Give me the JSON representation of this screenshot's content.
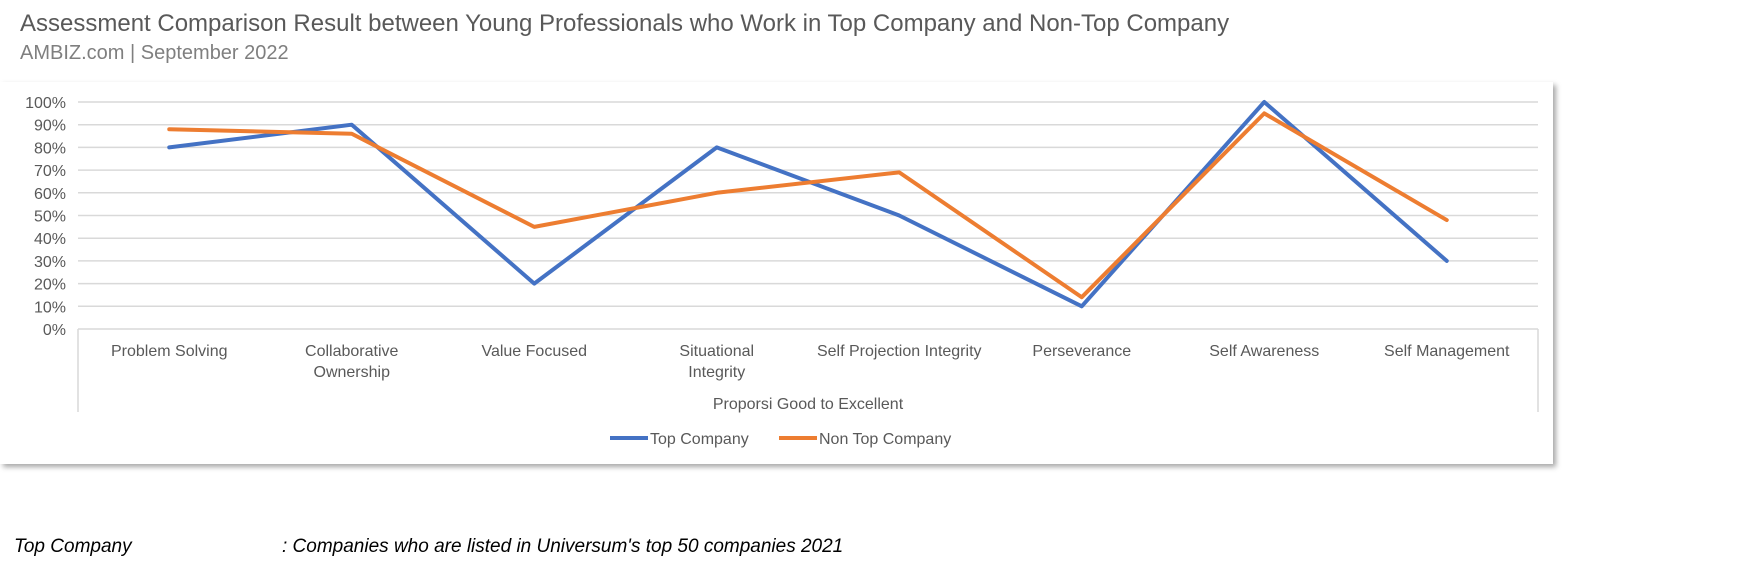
{
  "title": "Assessment Comparison Result between Young Professionals who Work in Top Company and Non-Top Company",
  "subtitle": "AMBIZ.com | September 2022",
  "footnote": {
    "term": "Top Company",
    "definition": ": Companies who are listed in Universum's top 50 companies 2021"
  },
  "chart_data": {
    "type": "line",
    "categories": [
      "Problem Solving",
      "Collaborative Ownership",
      "Value Focused",
      "Situational Integrity",
      "Self Projection Integrity",
      "Perseverance",
      "Self Awareness",
      "Self Management"
    ],
    "xlabel": "Proporsi Good to Excellent",
    "ylim": [
      0,
      100
    ],
    "yticks": [
      "0%",
      "10%",
      "20%",
      "30%",
      "40%",
      "50%",
      "60%",
      "70%",
      "80%",
      "90%",
      "100%"
    ],
    "grid": true,
    "legend": "bottom",
    "series": [
      {
        "name": "Top Company",
        "color": "#4472C4",
        "values": [
          80,
          90,
          20,
          80,
          50,
          10,
          100,
          30
        ]
      },
      {
        "name": "Non Top Company",
        "color": "#ED7D31",
        "values": [
          88,
          86,
          45,
          60,
          69,
          14,
          95,
          48
        ]
      }
    ]
  }
}
